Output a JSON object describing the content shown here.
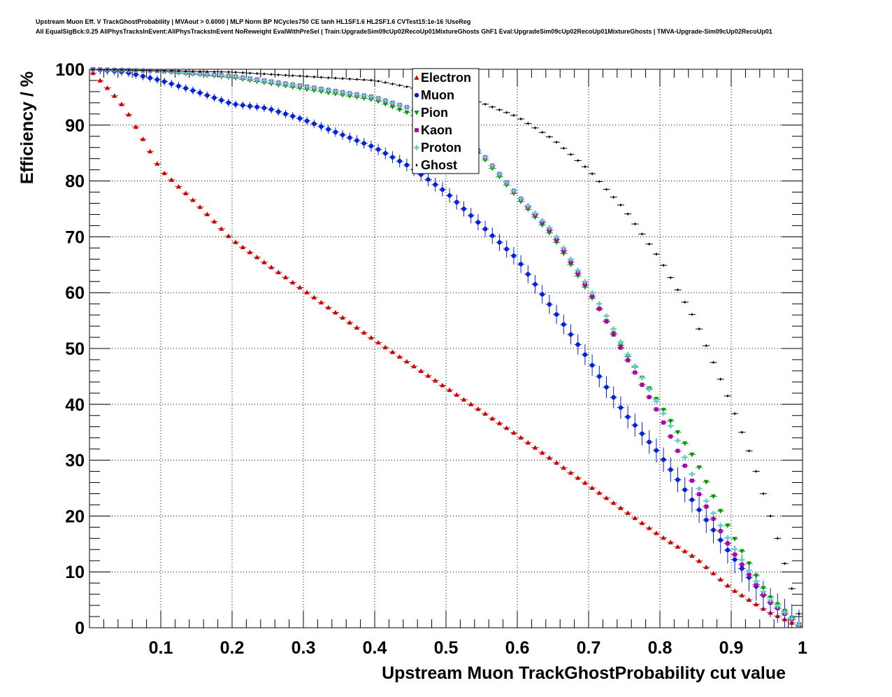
{
  "chart_data": {
    "type": "scatter",
    "title_line1": "Upstream Muon Eff. V TrackGhostProbability | MVAout > 0.6000 | MLP Norm BP NCycles750 CE tanh HL1SF1.6 HL2SF1.6 CVTest15:1e-16 !UseReg",
    "title_line2": "All EqualSigBck:0.25 AllPhysTracksInEvent:AllPhysTracksInEvent NoReweight EvalWithPreSel | Train:UpgradeSim09cUp02RecoUp01MixtureGhosts GhF1 Eval:UpgradeSim09cUp02RecoUp01MixtureGhosts | TMVA-Upgrade-Sim09cUp02RecoUp01",
    "xlabel": "Upstream Muon TrackGhostProbability cut value",
    "ylabel": "Efficiency / %",
    "xlim": [
      0,
      1
    ],
    "ylim": [
      0,
      100
    ],
    "xticks": [
      "0.1",
      "0.2",
      "0.3",
      "0.4",
      "0.5",
      "0.6",
      "0.7",
      "0.8",
      "0.9",
      "1"
    ],
    "yticks": [
      "0",
      "10",
      "20",
      "30",
      "40",
      "50",
      "60",
      "70",
      "80",
      "90",
      "100"
    ],
    "grid": true,
    "legend_position": "top-center",
    "series_keypoints_note": "each series sampled at x = 0.005, 0.015, ... 0.995 (100 bins) by linear interpolation between key points",
    "series": [
      {
        "name": "Electron",
        "color": "#cc0000",
        "marker": "triangle-up",
        "err": 0.25,
        "points": [
          [
            0,
            100
          ],
          [
            0.03,
            96
          ],
          [
            0.05,
            93
          ],
          [
            0.1,
            82
          ],
          [
            0.15,
            76
          ],
          [
            0.2,
            69.5
          ],
          [
            0.3,
            60.5
          ],
          [
            0.4,
            51.5
          ],
          [
            0.5,
            43
          ],
          [
            0.6,
            34.5
          ],
          [
            0.7,
            25.5
          ],
          [
            0.8,
            16.5
          ],
          [
            0.85,
            12.5
          ],
          [
            0.9,
            7
          ],
          [
            0.95,
            3
          ],
          [
            1,
            0
          ]
        ]
      },
      {
        "name": "Muon",
        "color": "#0022dd",
        "marker": "circle",
        "err": 1.2,
        "points": [
          [
            0,
            100
          ],
          [
            0.05,
            99.5
          ],
          [
            0.1,
            98
          ],
          [
            0.15,
            96
          ],
          [
            0.2,
            93.8
          ],
          [
            0.25,
            93
          ],
          [
            0.3,
            91
          ],
          [
            0.35,
            88.5
          ],
          [
            0.4,
            86
          ],
          [
            0.45,
            82.5
          ],
          [
            0.5,
            78
          ],
          [
            0.55,
            72
          ],
          [
            0.6,
            66
          ],
          [
            0.65,
            57
          ],
          [
            0.7,
            48
          ],
          [
            0.72,
            44
          ],
          [
            0.75,
            38.5
          ],
          [
            0.8,
            31
          ],
          [
            0.85,
            22
          ],
          [
            0.9,
            13
          ],
          [
            0.95,
            5
          ],
          [
            1,
            0
          ]
        ]
      },
      {
        "name": "Pion",
        "color": "#009900",
        "marker": "triangle-down",
        "err": 0.4,
        "points": [
          [
            0,
            100
          ],
          [
            0.1,
            99.6
          ],
          [
            0.2,
            98.5
          ],
          [
            0.3,
            96.5
          ],
          [
            0.4,
            94.5
          ],
          [
            0.45,
            92
          ],
          [
            0.5,
            89
          ],
          [
            0.55,
            84.5
          ],
          [
            0.6,
            77
          ],
          [
            0.65,
            70
          ],
          [
            0.7,
            60
          ],
          [
            0.72,
            56
          ],
          [
            0.75,
            49.5
          ],
          [
            0.8,
            40
          ],
          [
            0.85,
            30
          ],
          [
            0.9,
            17
          ],
          [
            0.95,
            6
          ],
          [
            1,
            0
          ]
        ]
      },
      {
        "name": "Kaon",
        "color": "#aa00aa",
        "marker": "square",
        "err": 0.4,
        "points": [
          [
            0,
            100
          ],
          [
            0.1,
            99.7
          ],
          [
            0.2,
            98.8
          ],
          [
            0.3,
            97
          ],
          [
            0.4,
            95
          ],
          [
            0.45,
            93
          ],
          [
            0.5,
            89.5
          ],
          [
            0.55,
            85
          ],
          [
            0.6,
            77.5
          ],
          [
            0.65,
            70.5
          ],
          [
            0.7,
            60.5
          ],
          [
            0.72,
            56
          ],
          [
            0.75,
            49
          ],
          [
            0.8,
            38
          ],
          [
            0.82,
            33
          ],
          [
            0.85,
            25
          ],
          [
            0.9,
            14
          ],
          [
            0.95,
            5
          ],
          [
            1,
            0
          ]
        ]
      },
      {
        "name": "Proton",
        "color": "#66cccc",
        "marker": "cross",
        "err": 0.4,
        "points": [
          [
            0,
            100
          ],
          [
            0.1,
            99.7
          ],
          [
            0.2,
            98.8
          ],
          [
            0.3,
            97
          ],
          [
            0.4,
            95
          ],
          [
            0.45,
            93
          ],
          [
            0.5,
            89.5
          ],
          [
            0.55,
            85
          ],
          [
            0.6,
            77.5
          ],
          [
            0.65,
            71
          ],
          [
            0.7,
            61
          ],
          [
            0.72,
            57
          ],
          [
            0.75,
            50
          ],
          [
            0.8,
            39.5
          ],
          [
            0.82,
            35
          ],
          [
            0.85,
            26
          ],
          [
            0.9,
            15
          ],
          [
            0.95,
            5.5
          ],
          [
            1,
            0
          ]
        ]
      },
      {
        "name": "Ghost",
        "color": "#000000",
        "marker": "diamond",
        "err": 0.2,
        "points": [
          [
            0,
            100
          ],
          [
            0.2,
            99.5
          ],
          [
            0.4,
            98
          ],
          [
            0.5,
            95.5
          ],
          [
            0.55,
            94
          ],
          [
            0.6,
            91.5
          ],
          [
            0.65,
            87.5
          ],
          [
            0.7,
            82
          ],
          [
            0.75,
            75
          ],
          [
            0.8,
            66
          ],
          [
            0.85,
            55
          ],
          [
            0.9,
            40
          ],
          [
            0.93,
            30
          ],
          [
            0.95,
            22
          ],
          [
            0.97,
            14
          ],
          [
            0.98,
            9
          ],
          [
            0.99,
            5
          ],
          [
            1,
            0
          ]
        ]
      }
    ]
  }
}
